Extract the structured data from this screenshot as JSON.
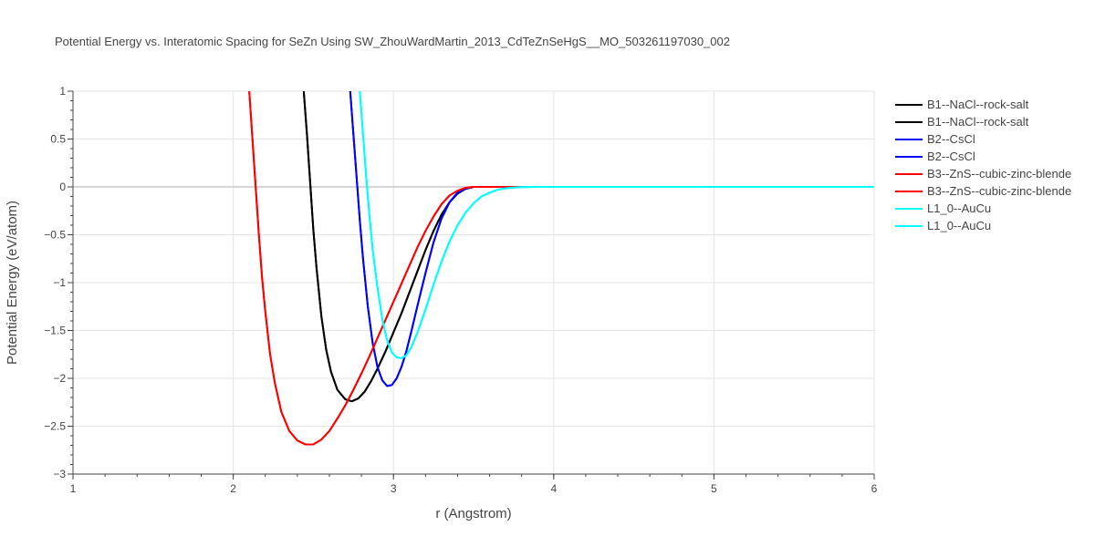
{
  "chart_data": {
    "type": "line",
    "title": "Potential Energy vs. Interatomic Spacing for SeZn Using SW_ZhouWardMartin_2013_CdTeZnSeHgS__MO_503261197030_002",
    "xlabel": "r (Angstrom)",
    "ylabel": "Potential Energy (eV/atom)",
    "xlim": [
      1,
      6
    ],
    "ylim": [
      -3,
      1
    ],
    "xticks": [
      "1",
      "2",
      "3",
      "4",
      "5",
      "6"
    ],
    "yticks": [
      "−3",
      "−2.5",
      "−2",
      "−1.5",
      "−1",
      "−0.5",
      "0",
      "0.5",
      "1"
    ],
    "grid": true,
    "legend_position": "top-right",
    "series": [
      {
        "name": "B1--NaCl--rock-salt",
        "color": "#000000",
        "x": [
          2.44,
          2.46,
          2.48,
          2.5,
          2.52,
          2.55,
          2.58,
          2.61,
          2.65,
          2.7,
          2.74,
          2.78,
          2.82,
          2.86,
          2.9,
          2.95,
          3.0,
          3.05,
          3.1,
          3.15,
          3.2,
          3.25,
          3.3,
          3.35,
          3.4,
          3.45,
          3.5,
          3.55,
          3.6,
          3.7,
          3.8,
          4.0,
          5.0,
          6.0
        ],
        "y": [
          1.0,
          0.55,
          0.05,
          -0.45,
          -0.85,
          -1.35,
          -1.7,
          -1.93,
          -2.12,
          -2.22,
          -2.24,
          -2.21,
          -2.14,
          -2.03,
          -1.9,
          -1.72,
          -1.52,
          -1.32,
          -1.1,
          -0.88,
          -0.66,
          -0.46,
          -0.29,
          -0.16,
          -0.07,
          -0.02,
          0.0,
          0.0,
          0.0,
          0.0,
          0.0,
          0.0,
          0.0,
          0.0
        ]
      },
      {
        "name": "B1--NaCl--rock-salt",
        "color": "#000000",
        "x": [
          2.44,
          2.46,
          2.48,
          2.5,
          2.52,
          2.55,
          2.58,
          2.61,
          2.65,
          2.7,
          2.74,
          2.78,
          2.82,
          2.86,
          2.9,
          2.95,
          3.0,
          3.05,
          3.1,
          3.15,
          3.2,
          3.25,
          3.3,
          3.35,
          3.4,
          3.45,
          3.5,
          3.55,
          3.6,
          3.7,
          3.8,
          4.0,
          5.0,
          6.0
        ],
        "y": [
          1.0,
          0.55,
          0.05,
          -0.45,
          -0.85,
          -1.35,
          -1.7,
          -1.93,
          -2.12,
          -2.22,
          -2.24,
          -2.21,
          -2.14,
          -2.03,
          -1.9,
          -1.72,
          -1.52,
          -1.32,
          -1.1,
          -0.88,
          -0.66,
          -0.46,
          -0.29,
          -0.16,
          -0.07,
          -0.02,
          0.0,
          0.0,
          0.0,
          0.0,
          0.0,
          0.0,
          0.0,
          0.0
        ]
      },
      {
        "name": "B2--CsCl",
        "color": "#0000ff",
        "x": [
          2.73,
          2.75,
          2.77,
          2.79,
          2.81,
          2.84,
          2.87,
          2.9,
          2.93,
          2.96,
          2.99,
          3.02,
          3.05,
          3.08,
          3.11,
          3.15,
          3.2,
          3.25,
          3.3,
          3.35,
          3.4,
          3.45,
          3.5,
          3.55,
          3.6,
          3.7,
          3.8,
          4.0,
          5.0,
          6.0
        ],
        "y": [
          1.0,
          0.55,
          0.1,
          -0.35,
          -0.75,
          -1.25,
          -1.63,
          -1.88,
          -2.02,
          -2.08,
          -2.07,
          -2.0,
          -1.88,
          -1.72,
          -1.52,
          -1.24,
          -0.9,
          -0.58,
          -0.33,
          -0.16,
          -0.06,
          -0.02,
          0.0,
          0.0,
          0.0,
          0.0,
          0.0,
          0.0,
          0.0,
          0.0
        ]
      },
      {
        "name": "B2--CsCl",
        "color": "#0000ff",
        "x": [
          2.73,
          2.75,
          2.77,
          2.79,
          2.81,
          2.84,
          2.87,
          2.9,
          2.93,
          2.96,
          2.99,
          3.02,
          3.05,
          3.08,
          3.11,
          3.15,
          3.2,
          3.25,
          3.3,
          3.35,
          3.4,
          3.45,
          3.5,
          3.55,
          3.6,
          3.7,
          3.8,
          4.0,
          5.0,
          6.0
        ],
        "y": [
          1.0,
          0.55,
          0.1,
          -0.35,
          -0.75,
          -1.25,
          -1.63,
          -1.88,
          -2.02,
          -2.08,
          -2.07,
          -2.0,
          -1.88,
          -1.72,
          -1.52,
          -1.24,
          -0.9,
          -0.58,
          -0.33,
          -0.16,
          -0.06,
          -0.02,
          0.0,
          0.0,
          0.0,
          0.0,
          0.0,
          0.0,
          0.0,
          0.0
        ]
      },
      {
        "name": "B3--ZnS--cubic-zinc-blende",
        "color": "#ff0000",
        "x": [
          2.1,
          2.12,
          2.14,
          2.16,
          2.18,
          2.2,
          2.23,
          2.26,
          2.3,
          2.35,
          2.4,
          2.45,
          2.5,
          2.55,
          2.6,
          2.65,
          2.7,
          2.75,
          2.8,
          2.85,
          2.9,
          2.95,
          3.0,
          3.05,
          3.1,
          3.15,
          3.2,
          3.25,
          3.3,
          3.35,
          3.4,
          3.45,
          3.5,
          3.55,
          3.6,
          3.7,
          3.8,
          4.0,
          5.0,
          6.0
        ],
        "y": [
          1.0,
          0.5,
          0.0,
          -0.5,
          -0.95,
          -1.3,
          -1.75,
          -2.05,
          -2.35,
          -2.55,
          -2.65,
          -2.69,
          -2.69,
          -2.64,
          -2.55,
          -2.42,
          -2.28,
          -2.12,
          -1.95,
          -1.77,
          -1.58,
          -1.39,
          -1.2,
          -1.01,
          -0.82,
          -0.63,
          -0.46,
          -0.31,
          -0.18,
          -0.09,
          -0.04,
          -0.01,
          0.0,
          0.0,
          0.0,
          0.0,
          0.0,
          0.0,
          0.0,
          0.0
        ]
      },
      {
        "name": "B3--ZnS--cubic-zinc-blende",
        "color": "#ff0000",
        "x": [
          2.1,
          2.12,
          2.14,
          2.16,
          2.18,
          2.2,
          2.23,
          2.26,
          2.3,
          2.35,
          2.4,
          2.45,
          2.5,
          2.55,
          2.6,
          2.65,
          2.7,
          2.75,
          2.8,
          2.85,
          2.9,
          2.95,
          3.0,
          3.05,
          3.1,
          3.15,
          3.2,
          3.25,
          3.3,
          3.35,
          3.4,
          3.45,
          3.5,
          3.55,
          3.6,
          3.7,
          3.8,
          4.0,
          5.0,
          6.0
        ],
        "y": [
          1.0,
          0.5,
          0.0,
          -0.5,
          -0.95,
          -1.3,
          -1.75,
          -2.05,
          -2.35,
          -2.55,
          -2.65,
          -2.69,
          -2.69,
          -2.64,
          -2.55,
          -2.42,
          -2.28,
          -2.12,
          -1.95,
          -1.77,
          -1.58,
          -1.39,
          -1.2,
          -1.01,
          -0.82,
          -0.63,
          -0.46,
          -0.31,
          -0.18,
          -0.09,
          -0.04,
          -0.01,
          0.0,
          0.0,
          0.0,
          0.0,
          0.0,
          0.0,
          0.0,
          0.0
        ]
      },
      {
        "name": "L1_0--AuCu",
        "color": "#00ffff",
        "x": [
          2.79,
          2.81,
          2.83,
          2.85,
          2.87,
          2.9,
          2.93,
          2.96,
          2.99,
          3.02,
          3.05,
          3.08,
          3.11,
          3.15,
          3.2,
          3.25,
          3.3,
          3.35,
          3.4,
          3.45,
          3.5,
          3.55,
          3.6,
          3.65,
          3.7,
          3.75,
          3.8,
          3.85,
          3.9,
          4.0,
          5.0,
          6.0
        ],
        "y": [
          1.0,
          0.55,
          0.1,
          -0.3,
          -0.65,
          -1.05,
          -1.38,
          -1.6,
          -1.73,
          -1.78,
          -1.79,
          -1.76,
          -1.68,
          -1.52,
          -1.28,
          -1.02,
          -0.78,
          -0.57,
          -0.4,
          -0.27,
          -0.17,
          -0.1,
          -0.06,
          -0.03,
          -0.015,
          -0.007,
          -0.003,
          -0.001,
          0.0,
          0.0,
          0.0,
          0.0
        ]
      },
      {
        "name": "L1_0--AuCu",
        "color": "#00ffff",
        "x": [
          2.79,
          2.81,
          2.83,
          2.85,
          2.87,
          2.9,
          2.93,
          2.96,
          2.99,
          3.02,
          3.05,
          3.08,
          3.11,
          3.15,
          3.2,
          3.25,
          3.3,
          3.35,
          3.4,
          3.45,
          3.5,
          3.55,
          3.6,
          3.65,
          3.7,
          3.75,
          3.8,
          3.85,
          3.9,
          4.0,
          5.0,
          6.0
        ],
        "y": [
          1.0,
          0.55,
          0.1,
          -0.3,
          -0.65,
          -1.05,
          -1.38,
          -1.6,
          -1.73,
          -1.78,
          -1.79,
          -1.76,
          -1.68,
          -1.52,
          -1.28,
          -1.02,
          -0.78,
          -0.57,
          -0.4,
          -0.27,
          -0.17,
          -0.1,
          -0.06,
          -0.03,
          -0.015,
          -0.007,
          -0.003,
          -0.001,
          0.0,
          0.0,
          0.0,
          0.0
        ]
      }
    ]
  }
}
